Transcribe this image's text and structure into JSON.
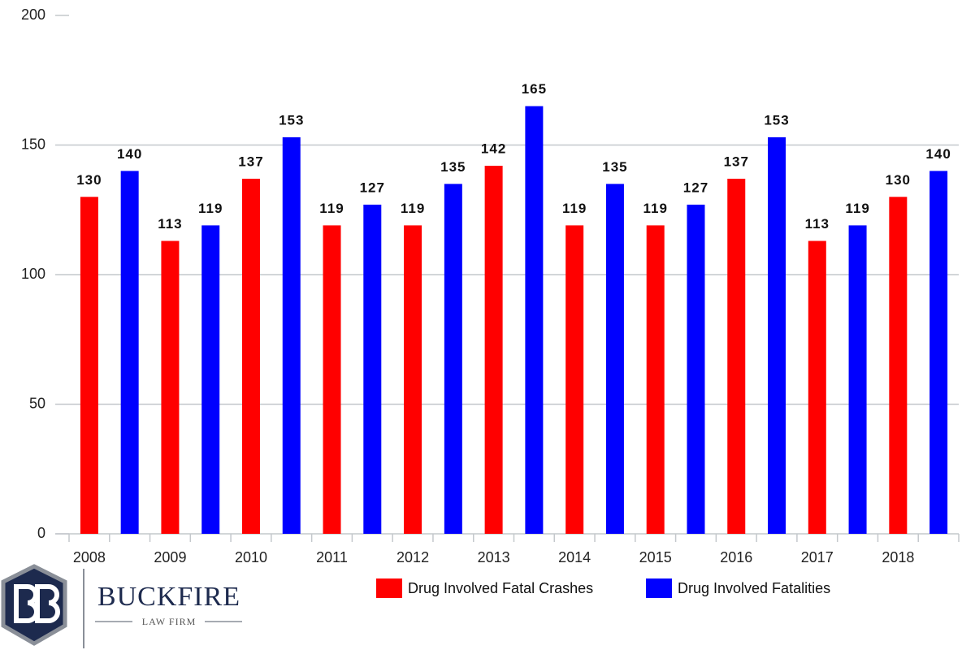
{
  "chart_data": {
    "type": "bar",
    "categories": [
      "2008",
      "2009",
      "2010",
      "2011",
      "2012",
      "2013",
      "2014",
      "2015",
      "2016",
      "2017",
      "2018"
    ],
    "series": [
      {
        "name": "Drug Involved Fatal Crashes",
        "color": "#ff0000",
        "values": [
          130,
          113,
          137,
          119,
          119,
          142,
          119,
          119,
          137,
          113,
          130
        ]
      },
      {
        "name": "Drug Involved Fatalities",
        "color": "#0000ff",
        "values": [
          140,
          119,
          153,
          127,
          135,
          165,
          135,
          127,
          153,
          119,
          140
        ]
      }
    ],
    "ylim": [
      0,
      200
    ],
    "yticks": [
      0,
      50,
      100,
      150,
      200
    ],
    "grid": true,
    "legend": "bottom"
  },
  "logo": {
    "name": "BUCKFIRE",
    "tagline": "LAW FIRM"
  }
}
